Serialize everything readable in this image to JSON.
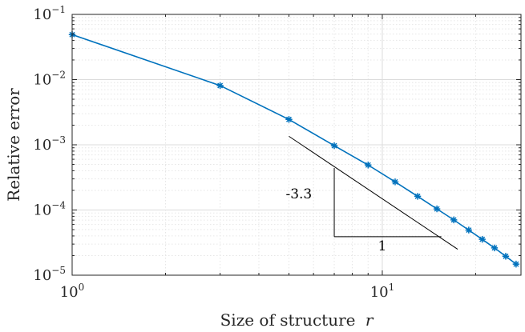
{
  "chart_data": {
    "type": "line",
    "xlabel": "Size of structure",
    "xlabel_var": "r",
    "ylabel": "Relative error",
    "x_scale": "log",
    "y_scale": "log",
    "xlim": [
      1,
      28
    ],
    "ylim": [
      1e-05,
      0.1
    ],
    "grid": "on (major and minor)",
    "x_ticks": [
      {
        "value": 1,
        "base": "10",
        "exp": "0"
      },
      {
        "value": 10,
        "base": "10",
        "exp": "1"
      }
    ],
    "y_ticks": [
      {
        "value": 0.1,
        "base": "10",
        "exp": "−1"
      },
      {
        "value": 0.01,
        "base": "10",
        "exp": "−2"
      },
      {
        "value": 0.001,
        "base": "10",
        "exp": "−3"
      },
      {
        "value": 0.0001,
        "base": "10",
        "exp": "−4"
      },
      {
        "value": 1e-05,
        "base": "10",
        "exp": "−5"
      }
    ],
    "series": [
      {
        "color": "#0072BD",
        "marker": "asterisk",
        "x": [
          1,
          3,
          5,
          7,
          9,
          11,
          13,
          15,
          17,
          19,
          21,
          23,
          25,
          27
        ],
        "y": [
          0.049,
          0.0081,
          0.00245,
          0.00097,
          0.00049,
          0.00027,
          0.000162,
          0.000104,
          7.05e-05,
          4.92e-05,
          3.55e-05,
          2.62e-05,
          1.95e-05,
          1.48e-05
        ]
      }
    ],
    "slope_triangle": {
      "slope_label": "-3.3",
      "run_label": "1",
      "hyp_start": {
        "x": 5,
        "y": 0.00135
      },
      "hyp_end": {
        "x": 17.5,
        "y": 2.5e-05
      },
      "corner": {
        "x": 7,
        "y": 3.9e-05
      },
      "run_end_x": 15.5,
      "rise_top_y": 0.00044,
      "slope_label_pos": {
        "x": 5.0,
        "y": 0.00015
      },
      "run_label_pos": {
        "x": 10.0,
        "y": 2.4e-05
      }
    }
  }
}
